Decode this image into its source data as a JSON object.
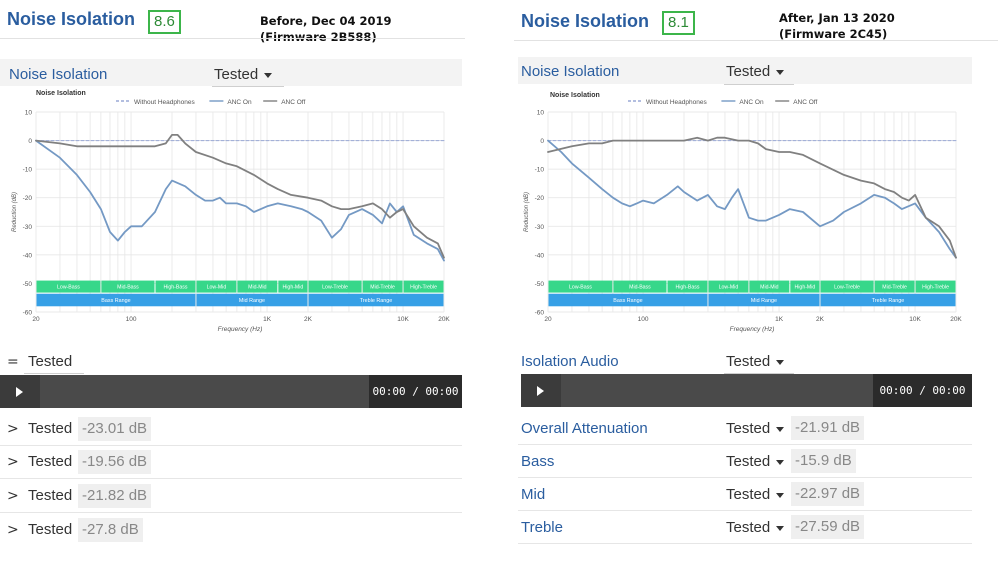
{
  "colors": {
    "accent": "#2a5d9f",
    "score_border": "#3cb54a",
    "anc_on": "#7499c4",
    "anc_off": "#808080",
    "without": "#9aa9d6",
    "band_green": "#37d78a",
    "band_blue": "#36a0e6"
  },
  "panels": [
    {
      "header": {
        "title": "Noise Isolation",
        "score": "8.6",
        "note_line1": "Before, Dec 04 2019",
        "note_line2": "(Firmware 2B588)"
      },
      "section": {
        "label": "Noise Isolation",
        "tested": "Tested"
      },
      "player": {
        "prefix": "=",
        "label": "",
        "tested": "Tested",
        "time": "00:00 / 00:00"
      },
      "results": [
        {
          "label": "",
          "tested": "Tested",
          "value": "-23.01 dB"
        },
        {
          "label": "",
          "tested": "Tested",
          "value": "-19.56 dB"
        },
        {
          "label": "",
          "tested": "Tested",
          "value": "-21.82 dB"
        },
        {
          "label": "",
          "tested": "Tested",
          "value": "-27.8 dB"
        }
      ]
    },
    {
      "header": {
        "title": "Noise Isolation",
        "score": "8.1",
        "note_line1": "After, Jan 13 2020",
        "note_line2": "(Firmware 2C45)"
      },
      "section": {
        "label": "Noise Isolation",
        "tested": "Tested"
      },
      "player": {
        "prefix": "",
        "label": "Isolation Audio",
        "tested": "Tested",
        "time": "00:00 / 00:00"
      },
      "results": [
        {
          "label": "Overall Attenuation",
          "tested": "Tested",
          "value": "-21.91 dB"
        },
        {
          "label": "Bass",
          "tested": "Tested",
          "value": "-15.9 dB"
        },
        {
          "label": "Mid",
          "tested": "Tested",
          "value": "-22.97 dB"
        },
        {
          "label": "Treble",
          "tested": "Tested",
          "value": "-27.59 dB"
        }
      ]
    }
  ],
  "chart_data": [
    {
      "type": "line",
      "title": "Noise Isolation",
      "xlabel": "Frequency (Hz)",
      "ylabel": "Reduction (dB)",
      "xscale": "log",
      "xlim": [
        20,
        20000
      ],
      "ylim": [
        -60,
        10
      ],
      "yticks": [
        10,
        0,
        -10,
        -20,
        -30,
        -40,
        -50,
        -60
      ],
      "xticks": [
        {
          "v": 20,
          "label": "20"
        },
        {
          "v": 100,
          "label": "100"
        },
        {
          "v": 1000,
          "label": "1K"
        },
        {
          "v": 2000,
          "label": "2K"
        },
        {
          "v": 10000,
          "label": "10K"
        },
        {
          "v": 20000,
          "label": "20K"
        }
      ],
      "grid": true,
      "legend_position": "top-center",
      "bands": {
        "sub": [
          {
            "label": "Low-Bass",
            "from": 20,
            "to": 60
          },
          {
            "label": "Mid-Bass",
            "from": 60,
            "to": 150
          },
          {
            "label": "High-Bass",
            "from": 150,
            "to": 300
          },
          {
            "label": "Low-Mid",
            "from": 300,
            "to": 600
          },
          {
            "label": "Mid-Mid",
            "from": 600,
            "to": 1200
          },
          {
            "label": "High-Mid",
            "from": 1200,
            "to": 2000
          },
          {
            "label": "Low-Treble",
            "from": 2000,
            "to": 5000
          },
          {
            "label": "Mid-Treble",
            "from": 5000,
            "to": 10000
          },
          {
            "label": "High-Treble",
            "from": 10000,
            "to": 20000
          }
        ],
        "main": [
          {
            "label": "Bass Range",
            "from": 20,
            "to": 300
          },
          {
            "label": "Mid Range",
            "from": 300,
            "to": 2000
          },
          {
            "label": "Treble Range",
            "from": 2000,
            "to": 20000
          }
        ]
      },
      "series": [
        {
          "name": "Without Headphones",
          "key": "without",
          "dashed": true,
          "x": [
            20,
            20000
          ],
          "y": [
            0,
            0
          ]
        },
        {
          "name": "ANC On",
          "key": "anc_on",
          "x": [
            20,
            30,
            40,
            50,
            60,
            70,
            80,
            90,
            100,
            120,
            150,
            180,
            200,
            250,
            300,
            350,
            400,
            450,
            500,
            600,
            700,
            800,
            1000,
            1200,
            1500,
            1800,
            2000,
            2500,
            3000,
            3500,
            4000,
            5000,
            6000,
            7000,
            8000,
            9000,
            10000,
            12000,
            15000,
            18000,
            20000
          ],
          "y": [
            0,
            -6,
            -12,
            -18,
            -24,
            -32,
            -35,
            -32,
            -30,
            -30,
            -25,
            -17,
            -14,
            -16,
            -19,
            -21,
            -21,
            -20,
            -22,
            -22,
            -23,
            -25,
            -23,
            -22,
            -23,
            -24,
            -25,
            -28,
            -34,
            -31,
            -26,
            -24,
            -26,
            -29,
            -22,
            -25,
            -23,
            -33,
            -36,
            -38,
            -42
          ]
        },
        {
          "name": "ANC Off",
          "key": "anc_off",
          "x": [
            20,
            30,
            40,
            50,
            60,
            70,
            80,
            100,
            120,
            150,
            180,
            200,
            220,
            250,
            300,
            400,
            500,
            600,
            800,
            1000,
            1200,
            1500,
            2000,
            2500,
            3000,
            3500,
            4000,
            5000,
            6000,
            7000,
            8000,
            9000,
            10000,
            12000,
            15000,
            18000,
            20000
          ],
          "y": [
            0,
            -1,
            -2,
            -2,
            -2,
            -2,
            -2,
            -2,
            -2,
            -2,
            -1,
            2,
            2,
            -1,
            -4,
            -6,
            -8,
            -9,
            -12,
            -15,
            -17,
            -19,
            -20,
            -21,
            -23,
            -24,
            -24,
            -23,
            -22,
            -24,
            -27,
            -25,
            -24,
            -30,
            -34,
            -36,
            -41
          ]
        }
      ]
    },
    {
      "type": "line",
      "title": "Noise Isolation",
      "xlabel": "Frequency (Hz)",
      "ylabel": "Reduction (dB)",
      "xscale": "log",
      "xlim": [
        20,
        20000
      ],
      "ylim": [
        -60,
        10
      ],
      "yticks": [
        10,
        0,
        -10,
        -20,
        -30,
        -40,
        -50,
        -60
      ],
      "xticks": [
        {
          "v": 20,
          "label": "20"
        },
        {
          "v": 100,
          "label": "100"
        },
        {
          "v": 1000,
          "label": "1K"
        },
        {
          "v": 2000,
          "label": "2K"
        },
        {
          "v": 10000,
          "label": "10K"
        },
        {
          "v": 20000,
          "label": "20K"
        }
      ],
      "grid": true,
      "legend_position": "top-center",
      "bands": {
        "sub": [
          {
            "label": "Low-Bass",
            "from": 20,
            "to": 60
          },
          {
            "label": "Mid-Bass",
            "from": 60,
            "to": 150
          },
          {
            "label": "High-Bass",
            "from": 150,
            "to": 300
          },
          {
            "label": "Low-Mid",
            "from": 300,
            "to": 600
          },
          {
            "label": "Mid-Mid",
            "from": 600,
            "to": 1200
          },
          {
            "label": "High-Mid",
            "from": 1200,
            "to": 2000
          },
          {
            "label": "Low-Treble",
            "from": 2000,
            "to": 5000
          },
          {
            "label": "Mid-Treble",
            "from": 5000,
            "to": 10000
          },
          {
            "label": "High-Treble",
            "from": 10000,
            "to": 20000
          }
        ],
        "main": [
          {
            "label": "Bass Range",
            "from": 20,
            "to": 300
          },
          {
            "label": "Mid Range",
            "from": 300,
            "to": 2000
          },
          {
            "label": "Treble Range",
            "from": 2000,
            "to": 20000
          }
        ]
      },
      "series": [
        {
          "name": "Without Headphones",
          "key": "without",
          "dashed": true,
          "x": [
            20,
            20000
          ],
          "y": [
            0,
            0
          ]
        },
        {
          "name": "ANC On",
          "key": "anc_on",
          "x": [
            20,
            25,
            30,
            40,
            50,
            60,
            70,
            80,
            90,
            100,
            120,
            150,
            180,
            200,
            250,
            300,
            350,
            400,
            450,
            500,
            600,
            700,
            800,
            1000,
            1200,
            1500,
            2000,
            2500,
            3000,
            4000,
            5000,
            6000,
            7000,
            8000,
            10000,
            12000,
            15000,
            18000,
            20000
          ],
          "y": [
            0,
            -4,
            -8,
            -13,
            -17,
            -20,
            -22,
            -23,
            -22,
            -21,
            -22,
            -19,
            -16,
            -18,
            -21,
            -19,
            -23,
            -24,
            -20,
            -17,
            -27,
            -28,
            -28,
            -26,
            -24,
            -25,
            -30,
            -28,
            -25,
            -22,
            -19,
            -20,
            -22,
            -24,
            -22,
            -27,
            -32,
            -38,
            -41
          ]
        },
        {
          "name": "ANC Off",
          "key": "anc_off",
          "x": [
            20,
            30,
            40,
            50,
            60,
            80,
            100,
            150,
            200,
            250,
            300,
            350,
            400,
            500,
            600,
            700,
            800,
            1000,
            1200,
            1500,
            2000,
            3000,
            4000,
            5000,
            6000,
            7000,
            8000,
            9000,
            10000,
            12000,
            15000,
            18000,
            20000
          ],
          "y": [
            -4,
            -2,
            -1,
            -1,
            0,
            0,
            0,
            0,
            0,
            1,
            0,
            1,
            1,
            0,
            0,
            -1,
            -3,
            -4,
            -4,
            -5,
            -8,
            -12,
            -14,
            -15,
            -17,
            -18,
            -20,
            -21,
            -19,
            -27,
            -30,
            -35,
            -41
          ]
        }
      ]
    }
  ]
}
